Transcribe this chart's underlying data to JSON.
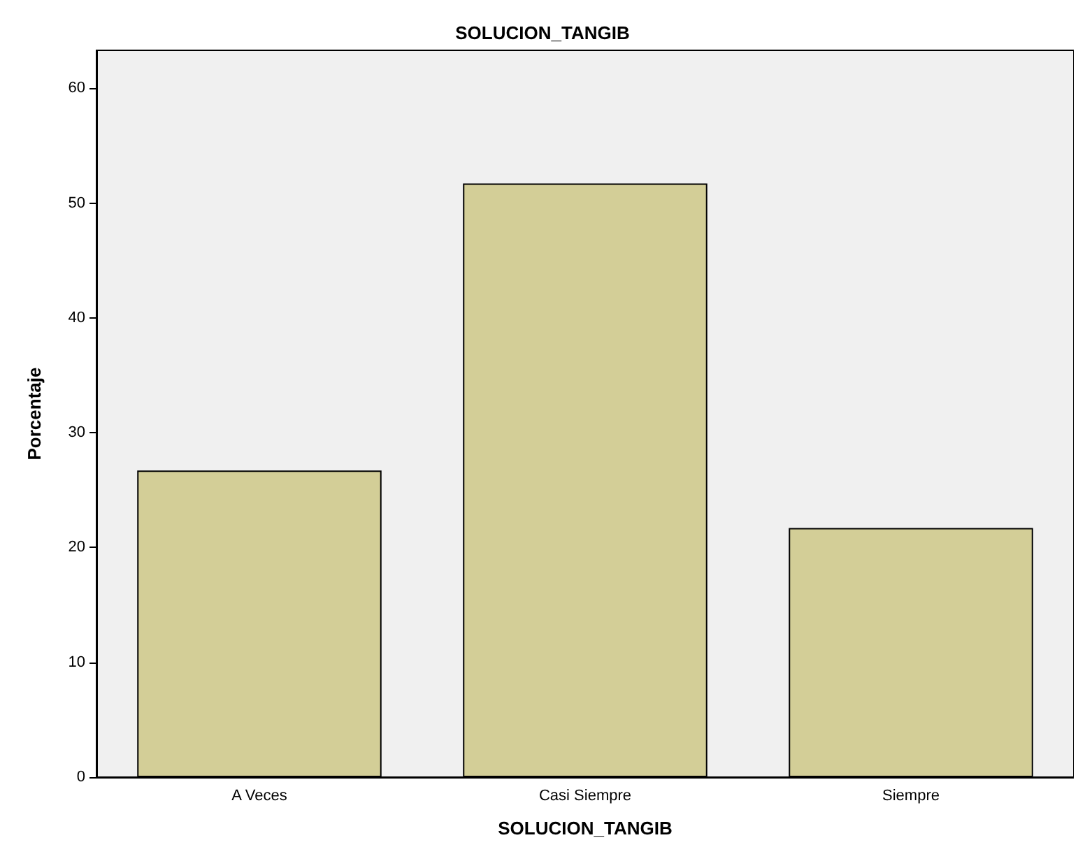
{
  "chart_data": {
    "type": "bar",
    "title": "SOLUCION_TANGIB",
    "xlabel": "SOLUCION_TANGIB",
    "ylabel": "Porcentaje",
    "categories": [
      "A Veces",
      "Casi Siempre",
      "Siempre"
    ],
    "values": [
      26.7,
      51.7,
      21.7
    ],
    "color": "#d3ce97",
    "ylim": [
      0,
      63.3
    ],
    "yticks": [
      0,
      10,
      20,
      30,
      40,
      50,
      60
    ],
    "grid": false
  }
}
